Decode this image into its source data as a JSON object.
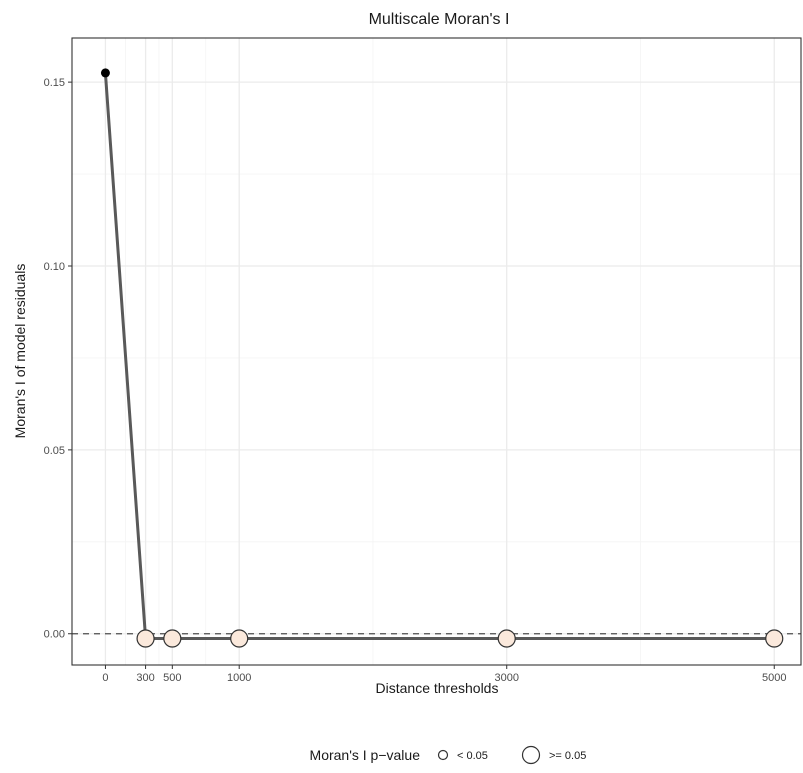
{
  "chart_data": {
    "type": "line",
    "title": "Multiscale Moran's I",
    "xlabel": "Distance thresholds",
    "ylabel": "Moran's I of model residuals",
    "x_ticks": [
      0,
      300,
      500,
      1000,
      3000,
      5000
    ],
    "x_tick_labels": [
      "0",
      "300",
      "500",
      "1000",
      "3000",
      "5000"
    ],
    "y_ticks": [
      0,
      0.05,
      0.1,
      0.15
    ],
    "y_tick_labels": [
      "0.00",
      "0.05",
      "0.10",
      "0.15"
    ],
    "xlim": [
      -250,
      5200
    ],
    "ylim": [
      -0.0085,
      0.162
    ],
    "grid": true,
    "reference_line_y": 0,
    "series": [
      {
        "x": [
          0,
          300,
          500,
          1000,
          3000,
          5000
        ],
        "y": [
          0.1525,
          -0.0013,
          -0.0013,
          -0.0013,
          -0.0013,
          -0.0013
        ],
        "p_value_group": [
          "< 0.05",
          ">= 0.05",
          ">= 0.05",
          ">= 0.05",
          ">= 0.05",
          ">= 0.05"
        ]
      }
    ],
    "legend": {
      "title": "Moran's I p−value",
      "position": "bottom",
      "entries": [
        "< 0.05",
        ">= 0.05"
      ]
    },
    "colors": {
      "line": "#595959",
      "significant_point": "#000000",
      "nonsignificant_fill": "#fbe9dc",
      "nonsignificant_stroke": "#333333",
      "grid_major": "#ebebeb",
      "grid_minor": "#f4f4f4",
      "panel_border": "#333333"
    }
  }
}
